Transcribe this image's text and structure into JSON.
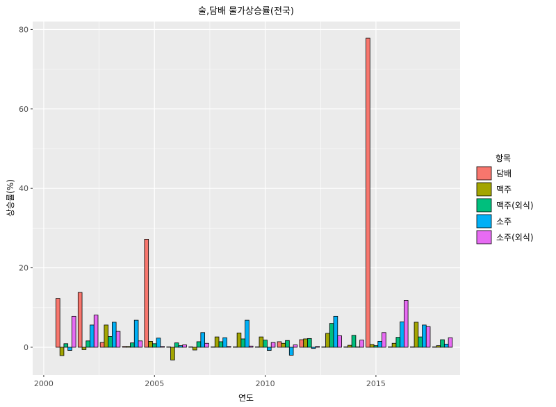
{
  "chart_data": {
    "type": "bar",
    "title": "술,담배 물가상승률(전국)",
    "xlabel": "연도",
    "ylabel": "상승률(%)",
    "legend_title": "항목",
    "legend_position": "right",
    "grid": true,
    "xlim": [
      1999.5,
      2018.8
    ],
    "ylim": [
      -7,
      82
    ],
    "xticks": [
      2000,
      2005,
      2010,
      2015
    ],
    "yticks": [
      0,
      20,
      40,
      60,
      80
    ],
    "x": [
      2001,
      2002,
      2003,
      2004,
      2005,
      2006,
      2007,
      2008,
      2009,
      2010,
      2011,
      2012,
      2013,
      2014,
      2015,
      2016,
      2017,
      2018
    ],
    "series": [
      {
        "name": "담배",
        "color": "#F8766D",
        "values": [
          12.3,
          13.8,
          1.2,
          0.2,
          27.2,
          0.1,
          0.1,
          0.1,
          0.1,
          0.1,
          1.4,
          1.9,
          0.1,
          0.1,
          77.8,
          0.1,
          0.1,
          0.1
        ]
      },
      {
        "name": "맥주",
        "color": "#A3A500",
        "values": [
          -2.1,
          -0.6,
          5.6,
          0.2,
          1.5,
          -3.2,
          -0.7,
          2.6,
          3.6,
          2.6,
          1.0,
          2.1,
          3.5,
          0.5,
          0.7,
          1.0,
          6.3,
          0.4
        ]
      },
      {
        "name": "맥주(외식)",
        "color": "#00BF7D",
        "values": [
          0.9,
          1.6,
          2.7,
          1.1,
          0.9,
          1.1,
          1.4,
          1.4,
          2.1,
          1.8,
          1.7,
          2.2,
          6.0,
          3.0,
          0.4,
          2.5,
          2.6,
          1.9
        ]
      },
      {
        "name": "소주",
        "color": "#00B0F6",
        "values": [
          -0.8,
          5.6,
          6.3,
          6.8,
          2.3,
          0.4,
          3.7,
          2.4,
          6.8,
          -0.8,
          -2.0,
          -0.3,
          7.8,
          0.1,
          1.5,
          6.4,
          5.6,
          0.8
        ]
      },
      {
        "name": "소주(외식)",
        "color": "#E76BF3",
        "values": [
          7.8,
          8.1,
          4.0,
          1.6,
          0.2,
          0.6,
          1.0,
          0.2,
          0.3,
          1.2,
          0.6,
          0.2,
          2.9,
          1.8,
          3.7,
          11.8,
          5.2,
          2.4
        ]
      }
    ]
  }
}
